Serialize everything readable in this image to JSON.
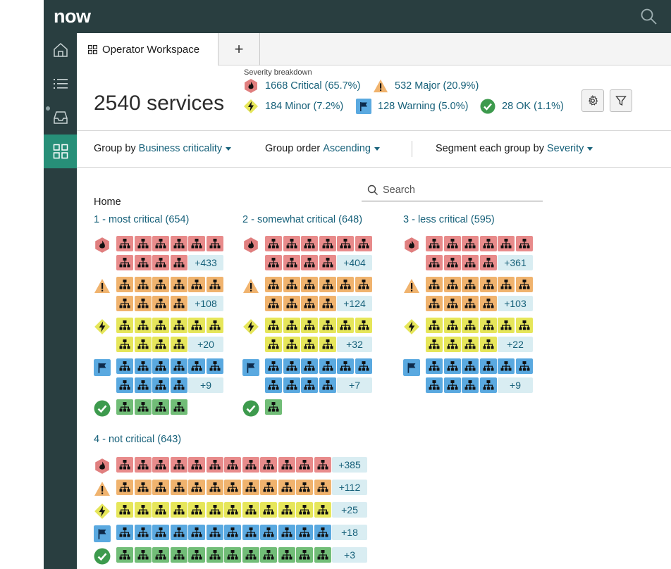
{
  "app": {
    "logo_text": "now"
  },
  "tabs": {
    "main_label": "Operator Workspace",
    "add_label": "+"
  },
  "header": {
    "services_count": "2540 services",
    "severity_label": "Severity breakdown",
    "severities": [
      {
        "key": "critical",
        "label": "1668 Critical (65.7%)",
        "icon": "fire-hexagon-icon"
      },
      {
        "key": "major",
        "label": "532 Major (20.9%)",
        "icon": "warning-triangle-icon"
      },
      {
        "key": "minor",
        "label": "184 Minor (7.2%)",
        "icon": "lightning-diamond-icon"
      },
      {
        "key": "warning",
        "label": "128 Warning (5.0%)",
        "icon": "flag-square-icon"
      },
      {
        "key": "ok",
        "label": "28 OK (1.1%)",
        "icon": "check-circle-icon"
      }
    ]
  },
  "controls": {
    "group_by_label": "Group by",
    "group_by_value": "Business criticality",
    "group_order_label": "Group order",
    "group_order_value": "Ascending",
    "segment_label": "Segment each group by",
    "segment_value": "Severity"
  },
  "search": {
    "placeholder": "Search"
  },
  "breadcrumb": "Home",
  "colors": {
    "critical": "#e88b8b",
    "major": "#f0b36e",
    "minor": "#e6e65a",
    "warning": "#5aa9e0",
    "ok": "#71bd77",
    "link": "#17617a",
    "nav": "#293e40",
    "nav_active": "#278f78"
  },
  "groups": [
    {
      "title": "1 - most critical (654)",
      "layout": "small",
      "rows": [
        {
          "sev": "critical",
          "tiles": 10,
          "more": "+433"
        },
        {
          "sev": "major",
          "tiles": 10,
          "more": "+108"
        },
        {
          "sev": "minor",
          "tiles": 10,
          "more": "+20"
        },
        {
          "sev": "warning",
          "tiles": 10,
          "more": "+9"
        },
        {
          "sev": "ok",
          "tiles": 4,
          "more": ""
        }
      ]
    },
    {
      "title": "2 - somewhat critical (648)",
      "layout": "small",
      "rows": [
        {
          "sev": "critical",
          "tiles": 10,
          "more": "+404"
        },
        {
          "sev": "major",
          "tiles": 10,
          "more": "+124"
        },
        {
          "sev": "minor",
          "tiles": 10,
          "more": "+32"
        },
        {
          "sev": "warning",
          "tiles": 10,
          "more": "+7"
        },
        {
          "sev": "ok",
          "tiles": 1,
          "more": ""
        }
      ]
    },
    {
      "title": "3 - less critical (595)",
      "layout": "small",
      "rows": [
        {
          "sev": "critical",
          "tiles": 10,
          "more": "+361"
        },
        {
          "sev": "major",
          "tiles": 10,
          "more": "+103"
        },
        {
          "sev": "minor",
          "tiles": 10,
          "more": "+22"
        },
        {
          "sev": "warning",
          "tiles": 10,
          "more": "+9"
        }
      ]
    },
    {
      "title": "4 - not critical (643)",
      "layout": "wide",
      "rows": [
        {
          "sev": "critical",
          "tiles": 12,
          "more": "+385"
        },
        {
          "sev": "major",
          "tiles": 12,
          "more": "+112"
        },
        {
          "sev": "minor",
          "tiles": 12,
          "more": "+25"
        },
        {
          "sev": "warning",
          "tiles": 12,
          "more": "+18"
        },
        {
          "sev": "ok",
          "tiles": 12,
          "more": "+3"
        }
      ]
    }
  ]
}
